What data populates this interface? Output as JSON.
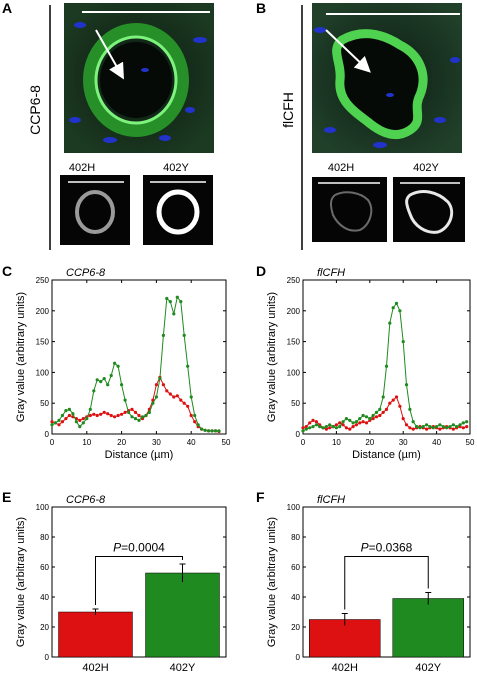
{
  "panels": {
    "A": {
      "letter": "A",
      "sample_label": "CCP6-8",
      "inset_labels": [
        "402H",
        "402Y"
      ]
    },
    "B": {
      "letter": "B",
      "sample_label": "flCFH",
      "inset_labels": [
        "402H",
        "402Y"
      ]
    }
  },
  "colors": {
    "red": "#dd1111",
    "green": "#1f8a1f",
    "micro_bg": "#0e1f14",
    "micro_green": "#3fc83f",
    "nuclei_blue": "#2233cc"
  },
  "chart_data": [
    {
      "panel": "C",
      "title": "CCP6-8",
      "type": "line",
      "xlabel": "Distance (µm)",
      "ylabel": "Gray value (arbitrary units)",
      "xlim": [
        0,
        50
      ],
      "ylim": [
        0,
        250
      ],
      "xticks": [
        0,
        10,
        20,
        30,
        40,
        50
      ],
      "yticks": [
        0,
        50,
        100,
        150,
        200,
        250
      ],
      "series": [
        {
          "color": "#1f8a1f",
          "points": [
            [
              0,
              15
            ],
            [
              1,
              18
            ],
            [
              2,
              22
            ],
            [
              3,
              30
            ],
            [
              4,
              38
            ],
            [
              5,
              40
            ],
            [
              6,
              33
            ],
            [
              7,
              20
            ],
            [
              8,
              12
            ],
            [
              9,
              18
            ],
            [
              10,
              25
            ],
            [
              11,
              40
            ],
            [
              12,
              70
            ],
            [
              13,
              88
            ],
            [
              14,
              85
            ],
            [
              15,
              90
            ],
            [
              16,
              80
            ],
            [
              17,
              95
            ],
            [
              18,
              115
            ],
            [
              19,
              110
            ],
            [
              20,
              80
            ],
            [
              21,
              55
            ],
            [
              22,
              35
            ],
            [
              23,
              28
            ],
            [
              24,
              25
            ],
            [
              25,
              22
            ],
            [
              26,
              28
            ],
            [
              27,
              30
            ],
            [
              28,
              35
            ],
            [
              29,
              50
            ],
            [
              30,
              60
            ],
            [
              31,
              90
            ],
            [
              32,
              160
            ],
            [
              33,
              220
            ],
            [
              34,
              215
            ],
            [
              35,
              195
            ],
            [
              36,
              222
            ],
            [
              37,
              215
            ],
            [
              38,
              160
            ],
            [
              39,
              110
            ],
            [
              40,
              60
            ],
            [
              41,
              30
            ],
            [
              42,
              15
            ],
            [
              43,
              8
            ],
            [
              44,
              6
            ],
            [
              45,
              5
            ],
            [
              46,
              5
            ],
            [
              47,
              5
            ],
            [
              48,
              5
            ]
          ]
        },
        {
          "color": "#dd1111",
          "points": [
            [
              0,
              20
            ],
            [
              1,
              18
            ],
            [
              2,
              15
            ],
            [
              3,
              20
            ],
            [
              4,
              25
            ],
            [
              5,
              30
            ],
            [
              6,
              28
            ],
            [
              7,
              25
            ],
            [
              8,
              22
            ],
            [
              9,
              25
            ],
            [
              10,
              28
            ],
            [
              11,
              30
            ],
            [
              12,
              32
            ],
            [
              13,
              30
            ],
            [
              14,
              32
            ],
            [
              15,
              35
            ],
            [
              16,
              33
            ],
            [
              17,
              30
            ],
            [
              18,
              28
            ],
            [
              19,
              30
            ],
            [
              20,
              32
            ],
            [
              21,
              35
            ],
            [
              22,
              38
            ],
            [
              23,
              40
            ],
            [
              24,
              35
            ],
            [
              25,
              30
            ],
            [
              26,
              25
            ],
            [
              27,
              30
            ],
            [
              28,
              40
            ],
            [
              29,
              55
            ],
            [
              30,
              80
            ],
            [
              31,
              92
            ],
            [
              32,
              80
            ],
            [
              33,
              70
            ],
            [
              34,
              65
            ],
            [
              35,
              60
            ],
            [
              36,
              62
            ],
            [
              37,
              55
            ],
            [
              38,
              50
            ],
            [
              39,
              45
            ],
            [
              40,
              30
            ],
            [
              41,
              20
            ],
            [
              42,
              12
            ],
            [
              43,
              8
            ],
            [
              44,
              6
            ],
            [
              45,
              5
            ],
            [
              46,
              5
            ],
            [
              47,
              5
            ],
            [
              48,
              4
            ]
          ]
        }
      ]
    },
    {
      "panel": "D",
      "title": "flCFH",
      "type": "line",
      "xlabel": "Distance (µm)",
      "ylabel": "Gray value (arbitrary units)",
      "xlim": [
        0,
        50
      ],
      "ylim": [
        0,
        250
      ],
      "xticks": [
        0,
        10,
        20,
        30,
        40,
        50
      ],
      "yticks": [
        0,
        50,
        100,
        150,
        200,
        250
      ],
      "series": [
        {
          "color": "#1f8a1f",
          "points": [
            [
              0,
              5
            ],
            [
              1,
              8
            ],
            [
              2,
              10
            ],
            [
              3,
              12
            ],
            [
              4,
              15
            ],
            [
              5,
              12
            ],
            [
              6,
              10
            ],
            [
              7,
              12
            ],
            [
              8,
              15
            ],
            [
              9,
              12
            ],
            [
              10,
              10
            ],
            [
              11,
              12
            ],
            [
              12,
              20
            ],
            [
              13,
              25
            ],
            [
              14,
              22
            ],
            [
              15,
              18
            ],
            [
              16,
              20
            ],
            [
              17,
              25
            ],
            [
              18,
              30
            ],
            [
              19,
              28
            ],
            [
              20,
              25
            ],
            [
              21,
              30
            ],
            [
              22,
              35
            ],
            [
              23,
              40
            ],
            [
              24,
              60
            ],
            [
              25,
              110
            ],
            [
              26,
              180
            ],
            [
              27,
              205
            ],
            [
              28,
              212
            ],
            [
              29,
              200
            ],
            [
              30,
              150
            ],
            [
              31,
              80
            ],
            [
              32,
              40
            ],
            [
              33,
              20
            ],
            [
              34,
              12
            ],
            [
              35,
              10
            ],
            [
              36,
              12
            ],
            [
              37,
              15
            ],
            [
              38,
              12
            ],
            [
              39,
              10
            ],
            [
              40,
              12
            ],
            [
              41,
              15
            ],
            [
              42,
              12
            ],
            [
              43,
              10
            ],
            [
              44,
              12
            ],
            [
              45,
              15
            ],
            [
              46,
              12
            ],
            [
              47,
              15
            ],
            [
              48,
              18
            ],
            [
              49,
              20
            ]
          ]
        },
        {
          "color": "#dd1111",
          "points": [
            [
              0,
              10
            ],
            [
              1,
              12
            ],
            [
              2,
              18
            ],
            [
              3,
              22
            ],
            [
              4,
              20
            ],
            [
              5,
              15
            ],
            [
              6,
              10
            ],
            [
              7,
              8
            ],
            [
              8,
              10
            ],
            [
              9,
              12
            ],
            [
              10,
              15
            ],
            [
              11,
              18
            ],
            [
              12,
              15
            ],
            [
              13,
              10
            ],
            [
              14,
              8
            ],
            [
              15,
              12
            ],
            [
              16,
              15
            ],
            [
              17,
              18
            ],
            [
              18,
              20
            ],
            [
              19,
              18
            ],
            [
              20,
              22
            ],
            [
              21,
              25
            ],
            [
              22,
              28
            ],
            [
              23,
              30
            ],
            [
              24,
              35
            ],
            [
              25,
              40
            ],
            [
              26,
              50
            ],
            [
              27,
              55
            ],
            [
              28,
              60
            ],
            [
              29,
              45
            ],
            [
              30,
              25
            ],
            [
              31,
              15
            ],
            [
              32,
              10
            ],
            [
              33,
              8
            ],
            [
              34,
              10
            ],
            [
              35,
              12
            ],
            [
              36,
              10
            ],
            [
              37,
              8
            ],
            [
              38,
              10
            ],
            [
              39,
              12
            ],
            [
              40,
              10
            ],
            [
              41,
              8
            ],
            [
              42,
              10
            ],
            [
              43,
              12
            ],
            [
              44,
              10
            ],
            [
              45,
              8
            ],
            [
              46,
              10
            ],
            [
              47,
              12
            ],
            [
              48,
              10
            ],
            [
              49,
              12
            ]
          ]
        }
      ]
    },
    {
      "panel": "E",
      "title": "CCP6-8",
      "type": "bar",
      "categories": [
        "402H",
        "402Y"
      ],
      "values": [
        30,
        56
      ],
      "errors": [
        2,
        6
      ],
      "bar_colors": [
        "#dd1111",
        "#1f8a1f"
      ],
      "ylabel": "Gray value (arbitrary units)",
      "ylim": [
        0,
        100
      ],
      "yticks": [
        0,
        20,
        40,
        60,
        80,
        100
      ],
      "annotation": "P=0.0004"
    },
    {
      "panel": "F",
      "title": "flCFH",
      "type": "bar",
      "categories": [
        "402H",
        "402Y"
      ],
      "values": [
        25,
        39
      ],
      "errors": [
        4,
        4
      ],
      "bar_colors": [
        "#dd1111",
        "#1f8a1f"
      ],
      "ylabel": "Gray value (arbitrary units)",
      "ylim": [
        0,
        100
      ],
      "yticks": [
        0,
        20,
        40,
        60,
        80,
        100
      ],
      "annotation": "P=0.0368"
    }
  ]
}
